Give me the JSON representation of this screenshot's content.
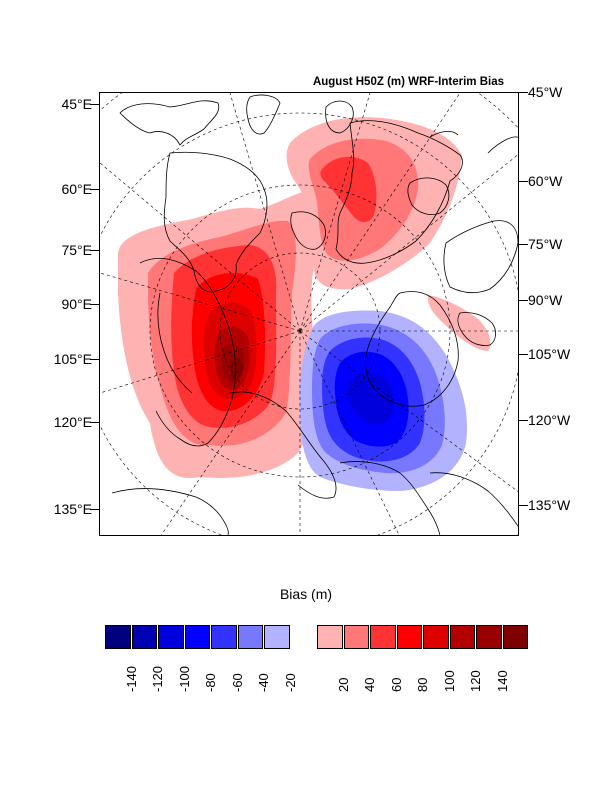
{
  "map": {
    "title": "August H50Z (m) WRF-Interim Bias",
    "left_lat_labels": [
      "45°E",
      "60°E",
      "75°E",
      "90°E",
      "105°E",
      "120°E",
      "135°E"
    ],
    "right_lat_labels": [
      "45°W",
      "60°W",
      "75°W",
      "90°W",
      "105°W",
      "120°W",
      "135°W"
    ],
    "anomalies": [
      {
        "name": "positive-bias-west",
        "peak_value": 140
      },
      {
        "name": "positive-bias-north",
        "peak_value": 60
      },
      {
        "name": "negative-bias-east",
        "peak_value": -100
      },
      {
        "name": "positive-bias-east-strip",
        "peak_value": 20
      }
    ]
  },
  "colorbar": {
    "label": "Bias (m)",
    "colors": [
      "#00007f",
      "#0000b2",
      "#0000dd",
      "#0000ff",
      "#3333ff",
      "#7777ff",
      "#b2b2ff",
      "#ffffff",
      "#ffb2b2",
      "#ff7777",
      "#ff3333",
      "#ff0000",
      "#dd0000",
      "#b20000",
      "#990000",
      "#7f0000"
    ],
    "tick_labels": [
      "-140",
      "-120",
      "-100",
      "-80",
      "-60",
      "-40",
      "-20",
      "20",
      "40",
      "60",
      "80",
      "100",
      "120",
      "140"
    ]
  }
}
